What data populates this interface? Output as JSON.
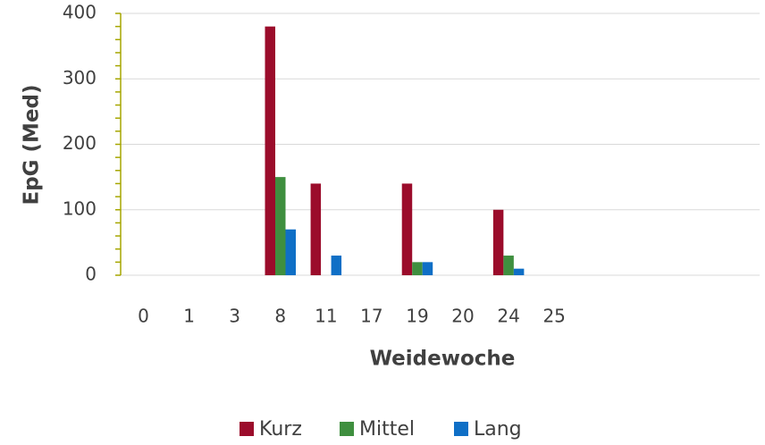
{
  "chart_data": {
    "type": "bar",
    "categories": [
      "0",
      "1",
      "3",
      "8",
      "11",
      "17",
      "19",
      "20",
      "24",
      "25",
      null,
      null,
      null,
      null
    ],
    "series": [
      {
        "name": "Kurz",
        "color": "#9b0c2b",
        "values": [
          0,
          0,
          0,
          380,
          140,
          0,
          140,
          0,
          100,
          0,
          null,
          null,
          null,
          null
        ]
      },
      {
        "name": "Mittel",
        "color": "#3f8f3f",
        "values": [
          0,
          0,
          0,
          150,
          0,
          0,
          20,
          0,
          30,
          0,
          null,
          null,
          null,
          null
        ]
      },
      {
        "name": "Lang",
        "color": "#0f6fc6",
        "values": [
          0,
          0,
          0,
          70,
          30,
          0,
          20,
          0,
          10,
          0,
          null,
          null,
          null,
          null
        ]
      }
    ],
    "xlabel": "Weidewoche",
    "ylabel": "EpG (Med)",
    "ylim": [
      0,
      400
    ],
    "yticks": [
      0,
      100,
      200,
      300,
      400
    ],
    "grid": true,
    "legend": "bottom"
  }
}
